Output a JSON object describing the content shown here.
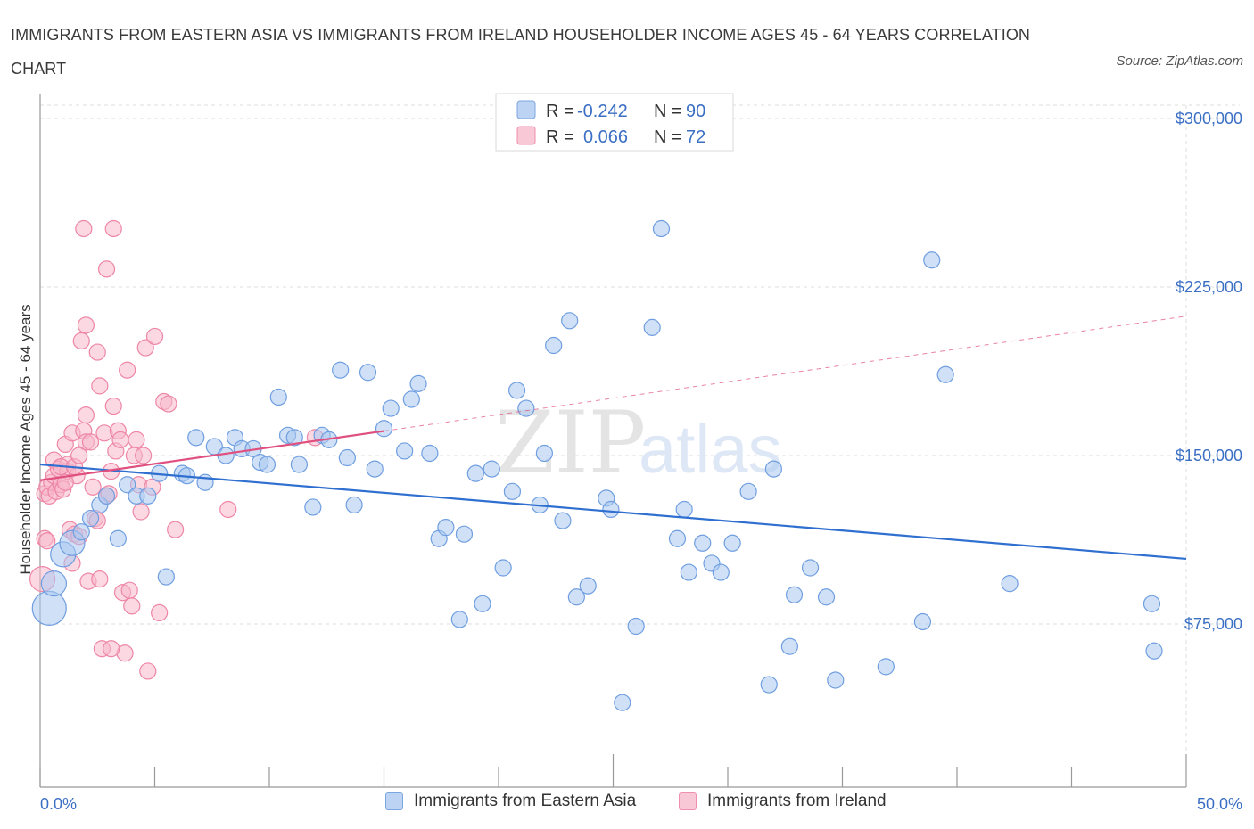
{
  "title": "IMMIGRANTS FROM EASTERN ASIA VS IMMIGRANTS FROM IRELAND HOUSEHOLDER INCOME AGES 45 - 64 YEARS CORRELATION CHART",
  "source": "Source: ZipAtlas.com",
  "watermark": {
    "zip": "ZIP",
    "atlas": "atlas"
  },
  "colors": {
    "blue_fill": "#a9c8f0",
    "blue_stroke": "#6f9ee0",
    "blue_line": "#2f6fd0",
    "pink_fill": "#f7b8cb",
    "pink_stroke": "#ee86a6",
    "pink_line": "#e0507f",
    "axis_text": "#3b6fc4",
    "grid": "#dddddd"
  },
  "legend": {
    "rows": [
      {
        "r_label": "R =",
        "r_value": "-0.242",
        "n_label": "N =",
        "n_value": "90"
      },
      {
        "r_label": "R =",
        "r_value": "0.066",
        "n_label": "N =",
        "n_value": "72"
      }
    ]
  },
  "bottom_legend": [
    "Immigrants from Eastern Asia",
    "Immigrants from Ireland"
  ],
  "chart_data": {
    "type": "scatter",
    "title": "IMMIGRANTS FROM EASTERN ASIA VS IMMIGRANTS FROM IRELAND HOUSEHOLDER INCOME AGES 45 - 64 YEARS CORRELATION CHART",
    "xlabel": "",
    "ylabel": "Householder Income Ages 45 - 64 years",
    "xlim": [
      0,
      50
    ],
    "ylim": [
      0,
      300000
    ],
    "x_tick_labels": [
      "0.0%",
      "50.0%"
    ],
    "y_ticks": [
      75000,
      150000,
      225000,
      300000
    ],
    "y_tick_labels": [
      "$75,000",
      "$150,000",
      "$225,000",
      "$300,000"
    ],
    "grid": true,
    "legend_position": "top-center",
    "series": [
      {
        "name": "Immigrants from Eastern Asia",
        "r": -0.242,
        "n": 90,
        "trend": {
          "x": [
            0,
            50
          ],
          "y": [
            146000,
            104000
          ]
        },
        "points": [
          {
            "x": 0.4,
            "y": 82000,
            "s": 3
          },
          {
            "x": 0.6,
            "y": 93000,
            "s": 2
          },
          {
            "x": 1.0,
            "y": 106000,
            "s": 2
          },
          {
            "x": 1.4,
            "y": 111000,
            "s": 2
          },
          {
            "x": 1.8,
            "y": 116000,
            "s": 1
          },
          {
            "x": 2.2,
            "y": 122000,
            "s": 1
          },
          {
            "x": 2.6,
            "y": 128000,
            "s": 1
          },
          {
            "x": 2.9,
            "y": 132000,
            "s": 1
          },
          {
            "x": 3.4,
            "y": 113000,
            "s": 1
          },
          {
            "x": 3.8,
            "y": 137000,
            "s": 1
          },
          {
            "x": 4.2,
            "y": 132000,
            "s": 1
          },
          {
            "x": 4.7,
            "y": 132000,
            "s": 1
          },
          {
            "x": 5.2,
            "y": 142000,
            "s": 1
          },
          {
            "x": 5.5,
            "y": 96000,
            "s": 1
          },
          {
            "x": 6.2,
            "y": 142000,
            "s": 1
          },
          {
            "x": 6.4,
            "y": 141000,
            "s": 1
          },
          {
            "x": 6.8,
            "y": 158000,
            "s": 1
          },
          {
            "x": 7.2,
            "y": 138000,
            "s": 1
          },
          {
            "x": 7.6,
            "y": 154000,
            "s": 1
          },
          {
            "x": 8.1,
            "y": 150000,
            "s": 1
          },
          {
            "x": 8.5,
            "y": 158000,
            "s": 1
          },
          {
            "x": 8.8,
            "y": 153000,
            "s": 1
          },
          {
            "x": 9.3,
            "y": 153000,
            "s": 1
          },
          {
            "x": 9.6,
            "y": 147000,
            "s": 1
          },
          {
            "x": 9.9,
            "y": 146000,
            "s": 1
          },
          {
            "x": 10.4,
            "y": 176000,
            "s": 1
          },
          {
            "x": 10.8,
            "y": 159000,
            "s": 1
          },
          {
            "x": 11.1,
            "y": 158000,
            "s": 1
          },
          {
            "x": 11.3,
            "y": 146000,
            "s": 1
          },
          {
            "x": 11.9,
            "y": 127000,
            "s": 1
          },
          {
            "x": 12.3,
            "y": 159000,
            "s": 1
          },
          {
            "x": 12.6,
            "y": 157000,
            "s": 1
          },
          {
            "x": 13.1,
            "y": 188000,
            "s": 1
          },
          {
            "x": 13.4,
            "y": 149000,
            "s": 1
          },
          {
            "x": 13.7,
            "y": 128000,
            "s": 1
          },
          {
            "x": 14.3,
            "y": 187000,
            "s": 1
          },
          {
            "x": 14.6,
            "y": 144000,
            "s": 1
          },
          {
            "x": 15.0,
            "y": 162000,
            "s": 1
          },
          {
            "x": 15.3,
            "y": 171000,
            "s": 1
          },
          {
            "x": 15.9,
            "y": 152000,
            "s": 1
          },
          {
            "x": 16.2,
            "y": 175000,
            "s": 1
          },
          {
            "x": 16.5,
            "y": 182000,
            "s": 1
          },
          {
            "x": 17.0,
            "y": 151000,
            "s": 1
          },
          {
            "x": 17.4,
            "y": 113000,
            "s": 1
          },
          {
            "x": 17.7,
            "y": 118000,
            "s": 1
          },
          {
            "x": 18.3,
            "y": 77000,
            "s": 1
          },
          {
            "x": 18.5,
            "y": 115000,
            "s": 1
          },
          {
            "x": 19.0,
            "y": 142000,
            "s": 1
          },
          {
            "x": 19.3,
            "y": 84000,
            "s": 1
          },
          {
            "x": 19.7,
            "y": 144000,
            "s": 1
          },
          {
            "x": 20.2,
            "y": 100000,
            "s": 1
          },
          {
            "x": 20.6,
            "y": 134000,
            "s": 1
          },
          {
            "x": 20.8,
            "y": 179000,
            "s": 1
          },
          {
            "x": 21.2,
            "y": 171000,
            "s": 1
          },
          {
            "x": 21.8,
            "y": 128000,
            "s": 1
          },
          {
            "x": 22.0,
            "y": 151000,
            "s": 1
          },
          {
            "x": 22.4,
            "y": 199000,
            "s": 1
          },
          {
            "x": 22.8,
            "y": 121000,
            "s": 1
          },
          {
            "x": 23.1,
            "y": 210000,
            "s": 1
          },
          {
            "x": 23.4,
            "y": 87000,
            "s": 1
          },
          {
            "x": 23.9,
            "y": 92000,
            "s": 1
          },
          {
            "x": 24.7,
            "y": 131000,
            "s": 1
          },
          {
            "x": 24.9,
            "y": 126000,
            "s": 1
          },
          {
            "x": 25.4,
            "y": 40000,
            "s": 1
          },
          {
            "x": 26.0,
            "y": 74000,
            "s": 1
          },
          {
            "x": 26.7,
            "y": 207000,
            "s": 1
          },
          {
            "x": 27.1,
            "y": 251000,
            "s": 1
          },
          {
            "x": 27.8,
            "y": 113000,
            "s": 1
          },
          {
            "x": 28.1,
            "y": 126000,
            "s": 1
          },
          {
            "x": 28.3,
            "y": 98000,
            "s": 1
          },
          {
            "x": 28.9,
            "y": 111000,
            "s": 1
          },
          {
            "x": 29.3,
            "y": 102000,
            "s": 1
          },
          {
            "x": 29.7,
            "y": 98000,
            "s": 1
          },
          {
            "x": 30.2,
            "y": 111000,
            "s": 1
          },
          {
            "x": 30.9,
            "y": 134000,
            "s": 1
          },
          {
            "x": 31.8,
            "y": 48000,
            "s": 1
          },
          {
            "x": 32.0,
            "y": 144000,
            "s": 1
          },
          {
            "x": 32.7,
            "y": 65000,
            "s": 1
          },
          {
            "x": 32.9,
            "y": 88000,
            "s": 1
          },
          {
            "x": 33.6,
            "y": 100000,
            "s": 1
          },
          {
            "x": 34.3,
            "y": 87000,
            "s": 1
          },
          {
            "x": 34.7,
            "y": 50000,
            "s": 1
          },
          {
            "x": 36.9,
            "y": 56000,
            "s": 1
          },
          {
            "x": 38.5,
            "y": 76000,
            "s": 1
          },
          {
            "x": 38.9,
            "y": 237000,
            "s": 1
          },
          {
            "x": 39.5,
            "y": 186000,
            "s": 1
          },
          {
            "x": 42.3,
            "y": 93000,
            "s": 1
          },
          {
            "x": 48.5,
            "y": 84000,
            "s": 1
          },
          {
            "x": 48.6,
            "y": 63000,
            "s": 1
          }
        ]
      },
      {
        "name": "Immigrants from Ireland",
        "r": 0.066,
        "n": 72,
        "trend": {
          "x": [
            0,
            50
          ],
          "y": [
            139000,
            212000
          ],
          "solid_until": 15
        },
        "points": [
          {
            "x": 0.1,
            "y": 95000,
            "s": 2
          },
          {
            "x": 0.2,
            "y": 113000,
            "s": 1
          },
          {
            "x": 0.2,
            "y": 133000,
            "s": 1
          },
          {
            "x": 0.3,
            "y": 136000,
            "s": 1
          },
          {
            "x": 0.3,
            "y": 112000,
            "s": 1
          },
          {
            "x": 0.4,
            "y": 132000,
            "s": 1
          },
          {
            "x": 0.5,
            "y": 138000,
            "s": 1
          },
          {
            "x": 0.6,
            "y": 141000,
            "s": 1
          },
          {
            "x": 0.6,
            "y": 148000,
            "s": 1
          },
          {
            "x": 0.7,
            "y": 134000,
            "s": 1
          },
          {
            "x": 0.8,
            "y": 144000,
            "s": 1
          },
          {
            "x": 0.9,
            "y": 137000,
            "s": 1
          },
          {
            "x": 1.0,
            "y": 135000,
            "s": 1
          },
          {
            "x": 1.1,
            "y": 155000,
            "s": 1
          },
          {
            "x": 1.2,
            "y": 146000,
            "s": 1
          },
          {
            "x": 1.2,
            "y": 143000,
            "s": 1
          },
          {
            "x": 1.3,
            "y": 117000,
            "s": 1
          },
          {
            "x": 1.4,
            "y": 160000,
            "s": 1
          },
          {
            "x": 1.4,
            "y": 102000,
            "s": 1
          },
          {
            "x": 1.5,
            "y": 115000,
            "s": 1
          },
          {
            "x": 1.6,
            "y": 141000,
            "s": 1
          },
          {
            "x": 1.7,
            "y": 114000,
            "s": 1
          },
          {
            "x": 1.8,
            "y": 201000,
            "s": 1
          },
          {
            "x": 1.9,
            "y": 161000,
            "s": 1
          },
          {
            "x": 2.0,
            "y": 156000,
            "s": 1
          },
          {
            "x": 2.1,
            "y": 94000,
            "s": 1
          },
          {
            "x": 2.2,
            "y": 156000,
            "s": 1
          },
          {
            "x": 2.3,
            "y": 136000,
            "s": 1
          },
          {
            "x": 2.4,
            "y": 122000,
            "s": 1
          },
          {
            "x": 2.5,
            "y": 196000,
            "s": 1
          },
          {
            "x": 2.6,
            "y": 95000,
            "s": 1
          },
          {
            "x": 2.7,
            "y": 64000,
            "s": 1
          },
          {
            "x": 2.8,
            "y": 160000,
            "s": 1
          },
          {
            "x": 2.9,
            "y": 132000,
            "s": 1
          },
          {
            "x": 3.0,
            "y": 133000,
            "s": 1
          },
          {
            "x": 3.1,
            "y": 143000,
            "s": 1
          },
          {
            "x": 3.2,
            "y": 172000,
            "s": 1
          },
          {
            "x": 3.3,
            "y": 152000,
            "s": 1
          },
          {
            "x": 3.4,
            "y": 161000,
            "s": 1
          },
          {
            "x": 3.5,
            "y": 157000,
            "s": 1
          },
          {
            "x": 3.6,
            "y": 89000,
            "s": 1
          },
          {
            "x": 3.7,
            "y": 62000,
            "s": 1
          },
          {
            "x": 3.8,
            "y": 188000,
            "s": 1
          },
          {
            "x": 3.9,
            "y": 90000,
            "s": 1
          },
          {
            "x": 4.0,
            "y": 83000,
            "s": 1
          },
          {
            "x": 4.1,
            "y": 150000,
            "s": 1
          },
          {
            "x": 4.2,
            "y": 157000,
            "s": 1
          },
          {
            "x": 4.3,
            "y": 137000,
            "s": 1
          },
          {
            "x": 4.4,
            "y": 125000,
            "s": 1
          },
          {
            "x": 4.5,
            "y": 150000,
            "s": 1
          },
          {
            "x": 4.6,
            "y": 198000,
            "s": 1
          },
          {
            "x": 4.7,
            "y": 54000,
            "s": 1
          },
          {
            "x": 4.9,
            "y": 136000,
            "s": 1
          },
          {
            "x": 5.0,
            "y": 203000,
            "s": 1
          },
          {
            "x": 5.2,
            "y": 80000,
            "s": 1
          },
          {
            "x": 5.4,
            "y": 174000,
            "s": 1
          },
          {
            "x": 5.6,
            "y": 173000,
            "s": 1
          },
          {
            "x": 5.9,
            "y": 117000,
            "s": 1
          },
          {
            "x": 8.2,
            "y": 126000,
            "s": 1
          },
          {
            "x": 1.9,
            "y": 251000,
            "s": 1
          },
          {
            "x": 3.2,
            "y": 251000,
            "s": 1
          },
          {
            "x": 2.9,
            "y": 233000,
            "s": 1
          },
          {
            "x": 2.0,
            "y": 208000,
            "s": 1
          },
          {
            "x": 2.6,
            "y": 181000,
            "s": 1
          },
          {
            "x": 1.1,
            "y": 138000,
            "s": 1
          },
          {
            "x": 0.9,
            "y": 145000,
            "s": 1
          },
          {
            "x": 1.5,
            "y": 145000,
            "s": 1
          },
          {
            "x": 2.0,
            "y": 168000,
            "s": 1
          },
          {
            "x": 3.1,
            "y": 64000,
            "s": 1
          },
          {
            "x": 2.5,
            "y": 121000,
            "s": 1
          },
          {
            "x": 12.0,
            "y": 158000,
            "s": 1
          },
          {
            "x": 1.7,
            "y": 150000,
            "s": 1
          }
        ]
      }
    ]
  }
}
